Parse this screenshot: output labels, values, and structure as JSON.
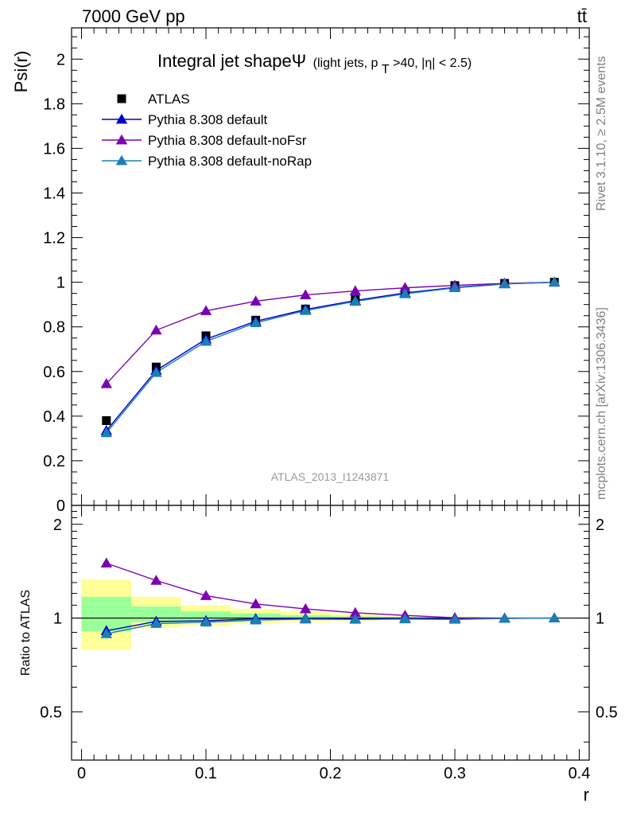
{
  "header": {
    "left": "7000 GeV pp",
    "right": "tt̄"
  },
  "side_labels": {
    "rivet": "Rivet 3.1.10, ≥ 2.5M events",
    "mcplots": "mcplots.cern.ch [arXiv:1306.3436]"
  },
  "watermark": "ATLAS_2013_I1243871",
  "chart_data": [
    {
      "type": "line",
      "title": "Integral jet shapeΨ",
      "subtitle": "(light jets, p_T>40, |η| < 2.5)",
      "title_parts": {
        "main": "Integral jet shapeΨ",
        "sub_a": "(light jets, p",
        "sub_b": "T",
        "sub_c": ">40, |η| < 2.5)"
      },
      "ylabel": "Psi(r)",
      "xlabel": "r",
      "xlim": [
        -0.008,
        0.408
      ],
      "ylim": [
        0,
        2.14
      ],
      "yticks": [
        0,
        0.2,
        0.4,
        0.6,
        0.8,
        1,
        1.2,
        1.4,
        1.6,
        1.8,
        2
      ],
      "ytick_labels": [
        "0",
        "0.2",
        "0.4",
        "0.6",
        "0.8",
        "1",
        "1.2",
        "1.4",
        "1.6",
        "1.8",
        "2"
      ],
      "x": [
        0.02,
        0.06,
        0.1,
        0.14,
        0.18,
        0.22,
        0.26,
        0.3,
        0.34,
        0.38
      ],
      "legend_placement": "top-left",
      "series": [
        {
          "name": "ATLAS",
          "marker": "square",
          "color": "#000000",
          "values": [
            0.38,
            0.62,
            0.76,
            0.83,
            0.88,
            0.925,
            0.955,
            0.985,
            0.995,
            1.0
          ]
        },
        {
          "name": "Pythia 8.308 default",
          "marker": "triangle",
          "color": "#0000cc",
          "values": [
            0.335,
            0.605,
            0.745,
            0.825,
            0.878,
            0.918,
            0.952,
            0.977,
            0.993,
            1.0
          ]
        },
        {
          "name": "Pythia 8.308 default-noFsr",
          "marker": "triangle",
          "color": "#7b00b4",
          "values": [
            0.545,
            0.785,
            0.872,
            0.915,
            0.943,
            0.961,
            0.975,
            0.986,
            0.995,
            1.0
          ]
        },
        {
          "name": "Pythia 8.308 default-noRap",
          "marker": "triangle",
          "color": "#1a7fb5",
          "values": [
            0.325,
            0.595,
            0.735,
            0.818,
            0.873,
            0.914,
            0.948,
            0.975,
            0.992,
            1.0
          ]
        }
      ]
    },
    {
      "type": "line",
      "ylabel": "Ratio to ATLAS",
      "xlabel": "r",
      "xlim": [
        -0.008,
        0.408
      ],
      "ylim": [
        0.35,
        2.3
      ],
      "yticks": [
        0.5,
        1,
        2
      ],
      "ytick_labels": [
        "0.5",
        "1",
        "2"
      ],
      "xticks": [
        0,
        0.1,
        0.2,
        0.3,
        0.4
      ],
      "xtick_labels": [
        "0",
        "0.1",
        "0.2",
        "0.3",
        "0.4"
      ],
      "x": [
        0.02,
        0.06,
        0.1,
        0.14,
        0.18,
        0.22,
        0.26,
        0.3,
        0.34,
        0.38
      ],
      "bands": {
        "bin_edges": [
          0.0,
          0.04,
          0.08,
          0.12,
          0.16,
          0.2,
          0.24,
          0.28,
          0.32,
          0.36,
          0.4
        ],
        "stat": {
          "color": "#99ff99",
          "lo": [
            0.905,
            0.97,
            0.982,
            0.985,
            0.99,
            0.993,
            0.995,
            0.997,
            0.998,
            0.999
          ],
          "hi": [
            1.17,
            1.09,
            1.05,
            1.035,
            1.02,
            1.012,
            1.008,
            1.005,
            1.003,
            1.001
          ]
        },
        "total": {
          "color": "#ffff99",
          "lo": [
            0.79,
            0.93,
            0.945,
            0.96,
            0.97,
            0.98,
            0.985,
            0.99,
            0.995,
            0.998
          ],
          "hi": [
            1.33,
            1.17,
            1.1,
            1.07,
            1.05,
            1.03,
            1.02,
            1.012,
            1.006,
            1.002
          ]
        }
      },
      "series": [
        {
          "name": "Pythia 8.308 default",
          "color": "#0000cc",
          "values": [
            0.91,
            0.975,
            0.98,
            0.995,
            0.998,
            0.995,
            0.998,
            0.993,
            0.998,
            1.0
          ]
        },
        {
          "name": "Pythia 8.308 default-noFsr",
          "color": "#7b00b4",
          "values": [
            1.5,
            1.32,
            1.18,
            1.11,
            1.07,
            1.04,
            1.02,
            1.002,
            1.0,
            1.0
          ]
        },
        {
          "name": "Pythia 8.308 default-noRap",
          "color": "#1a7fb5",
          "values": [
            0.89,
            0.96,
            0.97,
            0.985,
            0.992,
            0.99,
            0.993,
            0.99,
            0.997,
            1.0
          ]
        }
      ]
    }
  ]
}
